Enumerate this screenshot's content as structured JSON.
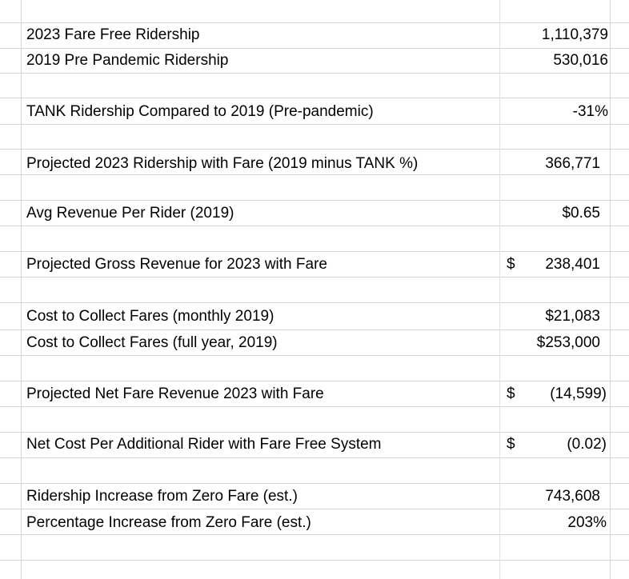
{
  "rows": [
    {
      "label": "2023 Fare Free Ridership",
      "value": "1,110,379"
    },
    {
      "label": "2019 Pre Pandemic Ridership",
      "value": "530,016"
    },
    {
      "label": "TANK Ridership Compared to 2019 (Pre-pandemic)",
      "value": "-31%"
    },
    {
      "label": "Projected 2023 Ridership with Fare (2019 minus TANK %)",
      "value": "366,771"
    },
    {
      "label": "Avg Revenue Per Rider (2019)",
      "value": "$0.65"
    },
    {
      "label": "Projected Gross Revenue for 2023 with Fare",
      "currency": "$",
      "value": "238,401"
    },
    {
      "label": "Cost to Collect Fares (monthly 2019)",
      "value": "$21,083"
    },
    {
      "label": "Cost to Collect Fares (full year, 2019)",
      "value": "$253,000"
    },
    {
      "label": "Projected Net Fare Revenue 2023 with Fare",
      "currency": "$",
      "value": "(14,599)"
    },
    {
      "label": "Net Cost Per Additional Rider with Fare Free System",
      "currency": "$",
      "value": "(0.02)"
    },
    {
      "label": "Ridership Increase from Zero Fare (est.)",
      "value": "743,608"
    },
    {
      "label": "Percentage Increase from Zero Fare (est.)",
      "value": "203%"
    }
  ]
}
